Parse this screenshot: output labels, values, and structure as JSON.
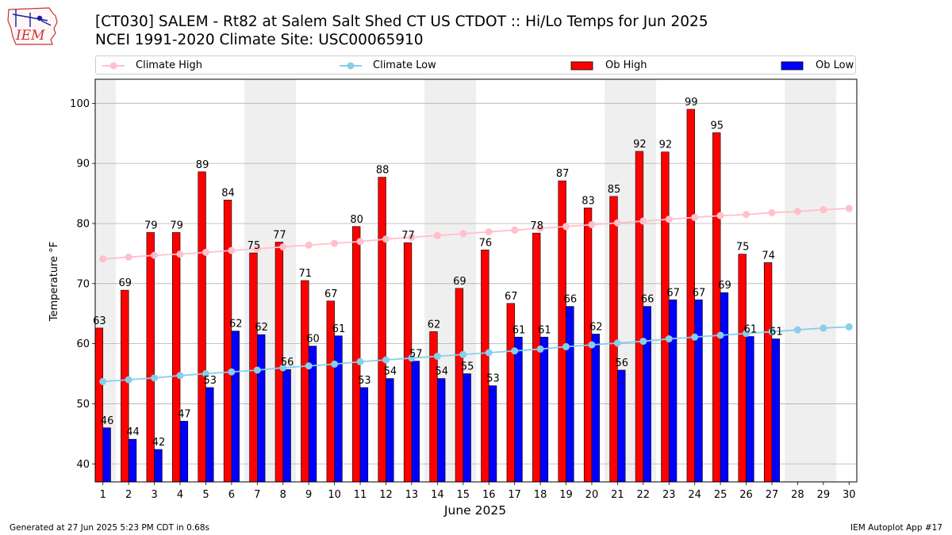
{
  "header": {
    "logo_text": "IEM",
    "title_line1": "[CT030] SALEM - Rt82 at Salem Salt Shed  CT US  CTDOT :: Hi/Lo Temps for Jun 2025",
    "title_line2": "NCEI 1991-2020 Climate Site: USC00065910"
  },
  "legend": [
    {
      "label": "Climate High",
      "color": "#ffc0cb",
      "kind": "line-marker"
    },
    {
      "label": "Climate Low",
      "color": "#87ceeb",
      "kind": "line-marker"
    },
    {
      "label": "Ob High",
      "color": "#ff0000",
      "kind": "bar"
    },
    {
      "label": "Ob Low",
      "color": "#0000ff",
      "kind": "bar"
    }
  ],
  "footer": {
    "left": "Generated at 27 Jun 2025 5:23 PM CDT in 0.68s",
    "right": "IEM Autoplot App #17"
  },
  "chart_data": {
    "type": "bar",
    "xlabel": "June 2025",
    "ylabel": "Temperature °F",
    "ylim": [
      37,
      104
    ],
    "yticks": [
      40,
      50,
      60,
      70,
      80,
      90,
      100
    ],
    "grid": true,
    "legend_position": "top",
    "categories": [
      "1",
      "2",
      "3",
      "4",
      "5",
      "6",
      "7",
      "8",
      "9",
      "10",
      "11",
      "12",
      "13",
      "14",
      "15",
      "16",
      "17",
      "18",
      "19",
      "20",
      "21",
      "22",
      "23",
      "24",
      "25",
      "26",
      "27",
      "28",
      "29",
      "30"
    ],
    "weekend_shading_days": [
      1,
      7,
      8,
      14,
      15,
      21,
      22,
      28,
      29
    ],
    "series": [
      {
        "name": "Ob High",
        "color": "#ff0000",
        "kind": "bar",
        "values": [
          62.6,
          68.9,
          78.5,
          78.5,
          88.6,
          83.9,
          75.1,
          76.9,
          70.5,
          67.1,
          79.5,
          87.7,
          76.8,
          62.0,
          69.2,
          75.6,
          66.7,
          78.4,
          87.1,
          82.6,
          84.5,
          92.0,
          91.9,
          99.0,
          95.1,
          74.9,
          73.5,
          null,
          null,
          null
        ],
        "labels": [
          "63",
          "69",
          "79",
          "79",
          "89",
          "84",
          "75",
          "77",
          "71",
          "67",
          "80",
          "88",
          "77",
          "62",
          "69",
          "76",
          "67",
          "78",
          "87",
          "83",
          "85",
          "92",
          "92",
          "99",
          "95",
          "75",
          "74",
          "",
          "",
          ""
        ]
      },
      {
        "name": "Ob Low",
        "color": "#0000ff",
        "kind": "bar",
        "values": [
          46.0,
          44.1,
          42.4,
          47.1,
          52.7,
          62.1,
          61.5,
          55.7,
          59.6,
          61.3,
          52.7,
          54.2,
          57.1,
          54.2,
          55.0,
          53.0,
          61.1,
          61.1,
          66.2,
          61.6,
          55.6,
          66.2,
          67.3,
          67.3,
          68.5,
          61.2,
          60.8,
          null,
          null,
          null
        ],
        "labels": [
          "46",
          "44",
          "42",
          "47",
          "53",
          "62",
          "62",
          "56",
          "60",
          "61",
          "53",
          "54",
          "57",
          "54",
          "55",
          "53",
          "61",
          "61",
          "66",
          "62",
          "56",
          "66",
          "67",
          "67",
          "69",
          "61",
          "61",
          "",
          "",
          ""
        ]
      },
      {
        "name": "Climate High",
        "color": "#ffc0cb",
        "kind": "line",
        "values": [
          74.1,
          74.4,
          74.7,
          74.9,
          75.2,
          75.5,
          75.8,
          76.1,
          76.4,
          76.7,
          77.0,
          77.4,
          77.7,
          78.0,
          78.3,
          78.6,
          78.9,
          79.2,
          79.5,
          79.8,
          80.1,
          80.4,
          80.7,
          81.0,
          81.3,
          81.5,
          81.8,
          82.0,
          82.3,
          82.5
        ]
      },
      {
        "name": "Climate Low",
        "color": "#87ceeb",
        "kind": "line",
        "values": [
          53.7,
          54.0,
          54.3,
          54.7,
          55.0,
          55.3,
          55.6,
          56.0,
          56.3,
          56.6,
          57.0,
          57.3,
          57.6,
          57.9,
          58.2,
          58.5,
          58.8,
          59.1,
          59.5,
          59.8,
          60.1,
          60.4,
          60.8,
          61.1,
          61.4,
          61.7,
          62.0,
          62.3,
          62.6,
          62.8
        ]
      }
    ]
  }
}
